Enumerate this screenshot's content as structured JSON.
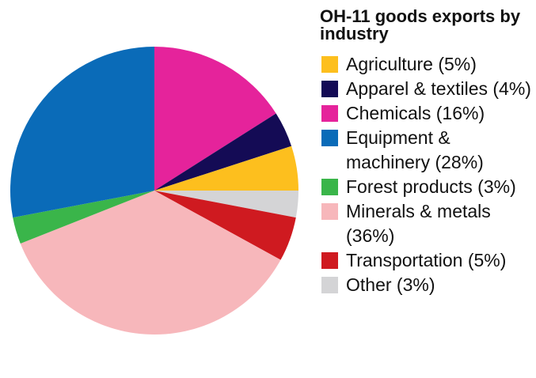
{
  "chart_data": {
    "type": "pie",
    "title": "OH-11 goods exports by industry",
    "start_angle_deg": 0,
    "direction": "clockwise",
    "slices": [
      {
        "label": "Chemicals (16%)",
        "value": 16,
        "color": "#e5239b"
      },
      {
        "label": "Apparel & textiles (4%)",
        "value": 4,
        "color": "#140b55"
      },
      {
        "label": "Agriculture (5%)",
        "value": 5,
        "color": "#fdbf1e"
      },
      {
        "label": "Other (3%)",
        "value": 3,
        "color": "#d4d4d6"
      },
      {
        "label": "Transportation (5%)",
        "value": 5,
        "color": "#cf1a20"
      },
      {
        "label": "Minerals & metals (36%)",
        "value": 36,
        "color": "#f7b7bb"
      },
      {
        "label": "Forest products (3%)",
        "value": 3,
        "color": "#3ab54a"
      },
      {
        "label": "Equipment & machinery (28%)",
        "value": 28,
        "color": "#0a6bb8"
      }
    ],
    "legend": [
      {
        "label": "Agriculture (5%)",
        "color": "#fdbf1e"
      },
      {
        "label": "Apparel & textiles (4%)",
        "color": "#140b55"
      },
      {
        "label": "Chemicals (16%)",
        "color": "#e5239b"
      },
      {
        "label": "Equipment & machinery (28%)",
        "color": "#0a6bb8"
      },
      {
        "label": "Forest products (3%)",
        "color": "#3ab54a"
      },
      {
        "label": "Minerals & metals (36%)",
        "color": "#f7b7bb"
      },
      {
        "label": "Transportation (5%)",
        "color": "#cf1a20"
      },
      {
        "label": "Other (3%)",
        "color": "#d4d4d6"
      }
    ],
    "legend_placement": "right"
  }
}
